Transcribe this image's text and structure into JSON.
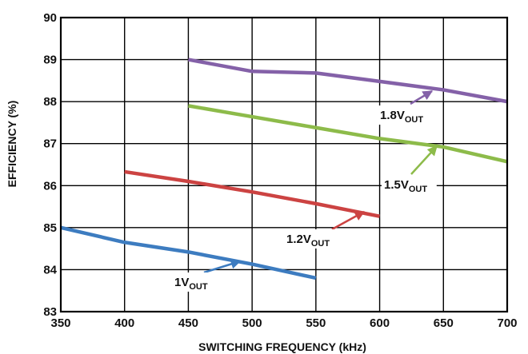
{
  "chart_data": {
    "type": "line",
    "title": "",
    "xlabel": "SWITCHING FREQUENCY (kHz)",
    "ylabel": "EFFICIENCY (%)",
    "xlim": [
      350,
      700
    ],
    "ylim": [
      83,
      90
    ],
    "xticks": [
      350,
      400,
      450,
      500,
      550,
      600,
      650,
      700
    ],
    "yticks": [
      83,
      84,
      85,
      86,
      87,
      88,
      89,
      90
    ],
    "grid": true,
    "legend": "none",
    "series": [
      {
        "color": "#3d7cc0",
        "label_main": "1V",
        "label_sub": "OUT",
        "x": [
          350,
          400,
          450,
          500,
          550
        ],
        "y": [
          85.0,
          84.65,
          84.42,
          84.13,
          83.8
        ]
      },
      {
        "color": "#cc4342",
        "label_main": "1.2V",
        "label_sub": "OUT",
        "x": [
          400,
          450,
          500,
          550,
          600
        ],
        "y": [
          86.33,
          86.1,
          85.85,
          85.57,
          85.27
        ]
      },
      {
        "color": "#8dbb4a",
        "label_main": "1.5V",
        "label_sub": "OUT",
        "x": [
          450,
          500,
          550,
          600,
          650,
          700
        ],
        "y": [
          87.9,
          87.64,
          87.38,
          87.12,
          86.92,
          86.57
        ]
      },
      {
        "color": "#8461a8",
        "label_main": "1.8V",
        "label_sub": "OUT",
        "x": [
          450,
          500,
          550,
          600,
          650,
          700
        ],
        "y": [
          89.0,
          88.72,
          88.68,
          88.48,
          88.28,
          88.0
        ]
      }
    ]
  }
}
